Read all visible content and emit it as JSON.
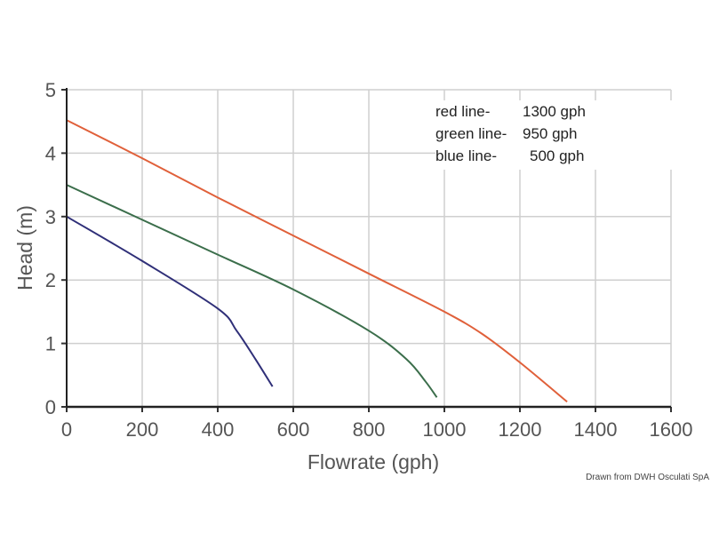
{
  "chart_data": {
    "type": "line",
    "title": "",
    "xlabel": "Flowrate (gph)",
    "ylabel": "Head (m)",
    "xlim": [
      0,
      1600
    ],
    "ylim": [
      0,
      5
    ],
    "xticks": [
      "0",
      "200",
      "400",
      "600",
      "800",
      "1000",
      "1200",
      "1400",
      "1600"
    ],
    "yticks": [
      "0",
      "1",
      "2",
      "3",
      "4",
      "5"
    ],
    "grid": true,
    "legend_position": "top-right",
    "series": [
      {
        "name": "red line",
        "legend_label": "red line-",
        "value_label": "1300 gph",
        "color": "#e0603a",
        "x": [
          0,
          200,
          400,
          600,
          800,
          1000,
          1100,
          1200,
          1325
        ],
        "y": [
          4.52,
          3.92,
          3.3,
          2.7,
          2.1,
          1.5,
          1.15,
          0.7,
          0.08
        ]
      },
      {
        "name": "green line",
        "legend_label": "green line-",
        "value_label": "950 gph",
        "color": "#3b6e4b",
        "x": [
          0,
          200,
          400,
          600,
          800,
          900,
          950,
          980
        ],
        "y": [
          3.5,
          2.95,
          2.4,
          1.85,
          1.2,
          0.75,
          0.4,
          0.15
        ]
      },
      {
        "name": "blue line",
        "legend_label": "blue line-",
        "value_label": "500 gph",
        "color": "#2f2f78",
        "x": [
          0,
          200,
          400,
          450,
          500,
          545
        ],
        "y": [
          3.0,
          2.3,
          1.55,
          1.2,
          0.75,
          0.32
        ]
      }
    ]
  },
  "credit": "Drawn from DWH Osculati SpA"
}
